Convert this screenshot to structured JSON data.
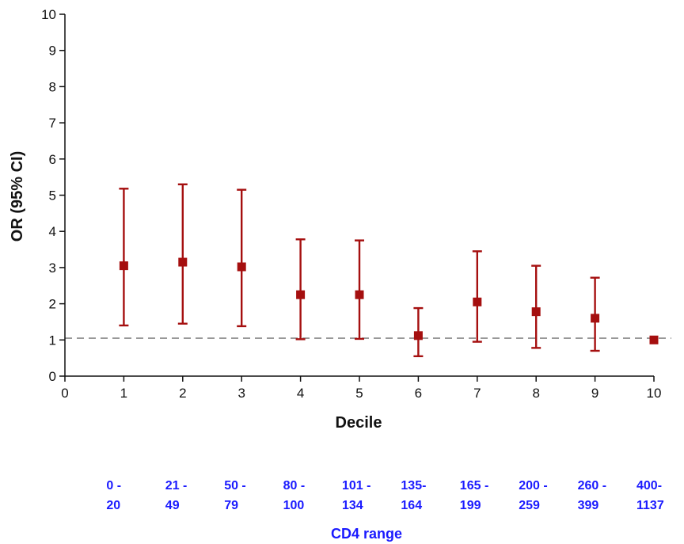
{
  "chart_data": {
    "type": "scatter",
    "xlabel": "Decile",
    "ylabel": "OR (95% CI)",
    "xlim": [
      0,
      10
    ],
    "ylim": [
      0,
      10
    ],
    "xticks": [
      "0",
      "1",
      "2",
      "3",
      "4",
      "5",
      "6",
      "7",
      "8",
      "9",
      "10"
    ],
    "yticks": [
      "0",
      "1",
      "2",
      "3",
      "4",
      "5",
      "6",
      "7",
      "8",
      "9",
      "10"
    ],
    "reference_line": 1.05,
    "points": [
      {
        "x": 1,
        "or": 3.05,
        "lower": 1.4,
        "upper": 5.18
      },
      {
        "x": 2,
        "or": 3.15,
        "lower": 1.45,
        "upper": 5.3
      },
      {
        "x": 3,
        "or": 3.02,
        "lower": 1.38,
        "upper": 5.15
      },
      {
        "x": 4,
        "or": 2.25,
        "lower": 1.02,
        "upper": 3.78
      },
      {
        "x": 5,
        "or": 2.25,
        "lower": 1.03,
        "upper": 3.75
      },
      {
        "x": 6,
        "or": 1.12,
        "lower": 0.55,
        "upper": 1.88
      },
      {
        "x": 7,
        "or": 2.05,
        "lower": 0.95,
        "upper": 3.45
      },
      {
        "x": 8,
        "or": 1.78,
        "lower": 0.78,
        "upper": 3.05
      },
      {
        "x": 9,
        "or": 1.6,
        "lower": 0.7,
        "upper": 2.72
      },
      {
        "x": 10,
        "or": 1.0,
        "lower": null,
        "upper": null
      }
    ],
    "secondary_axis": {
      "title": "CD4 range",
      "labels": [
        [
          "0 -",
          "20"
        ],
        [
          "21 -",
          "49"
        ],
        [
          "50 -",
          "79"
        ],
        [
          "80 -",
          "100"
        ],
        [
          "101 -",
          "134"
        ],
        [
          "135-",
          "164"
        ],
        [
          "165 -",
          "199"
        ],
        [
          "200 -",
          "259"
        ],
        [
          "260 -",
          "399"
        ],
        [
          "400-",
          "1137"
        ]
      ]
    },
    "colors": {
      "marker": "#a50f0f",
      "axis": "#111111",
      "reference": "#8a8a8a",
      "cd4_text": "#1a1aff"
    }
  }
}
